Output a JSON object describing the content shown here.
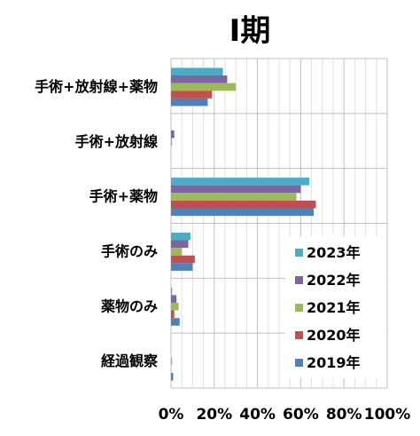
{
  "chart_data": {
    "type": "bar",
    "orientation": "horizontal",
    "title": "Ⅰ期",
    "categories": [
      "手術+放射線+薬物",
      "手術+放射線",
      "手術+薬物",
      "手術のみ",
      "薬物のみ",
      "経過観察"
    ],
    "series": [
      {
        "name": "2023年",
        "color": "#4bacc6",
        "values": [
          24,
          0,
          64,
          9,
          0.5,
          0
        ]
      },
      {
        "name": "2022年",
        "color": "#8064a2",
        "values": [
          26,
          1.5,
          60,
          8,
          2.5,
          0
        ]
      },
      {
        "name": "2021年",
        "color": "#9bbb59",
        "values": [
          30,
          0.5,
          58,
          5,
          3.5,
          0.5
        ]
      },
      {
        "name": "2020年",
        "color": "#c0504d",
        "values": [
          19,
          0,
          67,
          11,
          1.5,
          0
        ]
      },
      {
        "name": "2019年",
        "color": "#4f81bd",
        "values": [
          17,
          0,
          66,
          10,
          4,
          1
        ]
      }
    ],
    "xlim": [
      0,
      100
    ],
    "xticks": [
      "0%",
      "20%",
      "40%",
      "60%",
      "80%",
      "100%"
    ],
    "grid": true,
    "legend_position": "bottom-right",
    "legend_order": "as listed"
  }
}
